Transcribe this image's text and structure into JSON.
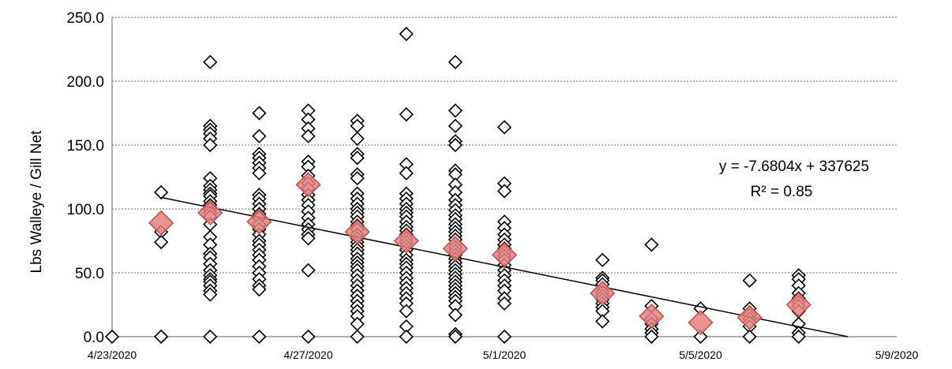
{
  "chart_data": {
    "type": "scatter",
    "title": "",
    "xlabel": "",
    "ylabel": "Lbs Walleye / Gill Net",
    "xlim": [
      "4/23/2020",
      "5/9/2020"
    ],
    "ylim": [
      0,
      250
    ],
    "x_ticks": [
      "4/23/2020",
      "4/27/2020",
      "5/1/2020",
      "5/5/2020",
      "5/9/2020"
    ],
    "y_ticks": [
      "0.0",
      "50.0",
      "100.0",
      "150.0",
      "200.0",
      "250.0"
    ],
    "grid": "horizontal dotted",
    "series": [
      {
        "style": "open-diamond",
        "color": "#000000",
        "points": [
          {
            "x": "4/23/2020",
            "y": [
              0
            ]
          },
          {
            "x": "4/24/2020",
            "y": [
              113,
              82,
              74,
              0
            ]
          },
          {
            "x": "4/25/2020",
            "y": [
              215,
              165,
              162,
              159,
              155,
              150,
              124,
              118,
              115,
              112,
              110,
              106,
              103,
              100,
              97,
              94,
              88,
              78,
              72,
              65,
              62,
              57,
              52,
              48,
              45,
              43,
              40,
              36,
              33,
              0
            ]
          },
          {
            "x": "4/26/2020",
            "y": [
              175,
              157,
              143,
              140,
              136,
              132,
              128,
              111,
              108,
              104,
              100,
              96,
              93,
              88,
              84,
              80,
              75,
              72,
              68,
              64,
              60,
              55,
              50,
              45,
              40,
              37,
              0
            ]
          },
          {
            "x": "4/27/2020",
            "y": [
              177,
              170,
              163,
              157,
              137,
              133,
              126,
              120,
              116,
              111,
              107,
              103,
              98,
              93,
              88,
              84,
              80,
              77,
              52,
              0
            ]
          },
          {
            "x": "4/28/2020",
            "y": [
              169,
              165,
              155,
              143,
              140,
              127,
              124,
              112,
              108,
              104,
              100,
              97,
              94,
              90,
              87,
              84,
              80,
              77,
              74,
              71,
              68,
              65,
              61,
              58,
              55,
              52,
              48,
              44,
              40,
              36,
              32,
              28,
              24,
              20,
              16,
              10,
              0
            ]
          },
          {
            "x": "4/29/2020",
            "y": [
              237,
              174,
              135,
              128,
              112,
              108,
              104,
              100,
              97,
              94,
              90,
              86,
              83,
              80,
              77,
              74,
              71,
              68,
              64,
              60,
              57,
              54,
              50,
              46,
              42,
              38,
              34,
              30,
              26,
              20,
              8,
              0
            ]
          },
          {
            "x": "4/30/2020",
            "y": [
              215,
              177,
              165,
              153,
              150,
              130,
              127,
              119,
              113,
              107,
              103,
              99,
              95,
              92,
              88,
              85,
              82,
              79,
              76,
              73,
              70,
              67,
              64,
              61,
              58,
              55,
              52,
              49,
              46,
              43,
              40,
              37,
              34,
              31,
              28,
              24,
              17,
              2,
              0
            ]
          },
          {
            "x": "5/1/2020",
            "y": [
              164,
              120,
              114,
              90,
              85,
              80,
              76,
              72,
              69,
              66,
              63,
              60,
              56,
              52,
              48,
              44,
              40,
              36,
              30,
              26,
              0
            ]
          },
          {
            "x": "5/3/2020",
            "y": [
              60,
              46,
              44,
              41,
              38,
              35,
              32,
              29,
              26,
              23,
              20,
              12
            ]
          },
          {
            "x": "5/4/2020",
            "y": [
              72,
              24,
              14,
              10,
              6,
              3,
              0
            ]
          },
          {
            "x": "5/5/2020",
            "y": [
              22,
              0
            ]
          },
          {
            "x": "5/6/2020",
            "y": [
              44,
              22,
              19,
              17,
              14,
              11,
              8,
              0
            ]
          },
          {
            "x": "5/7/2020",
            "y": [
              48,
              45,
              40,
              34,
              30,
              27,
              24,
              20,
              10,
              3,
              0
            ]
          }
        ]
      },
      {
        "style": "filled-diamond",
        "color": "#e58080",
        "points": [
          {
            "x": "4/24/2020",
            "y": 89
          },
          {
            "x": "4/25/2020",
            "y": 97
          },
          {
            "x": "4/26/2020",
            "y": 90
          },
          {
            "x": "4/27/2020",
            "y": 119
          },
          {
            "x": "4/28/2020",
            "y": 82
          },
          {
            "x": "4/29/2020",
            "y": 75
          },
          {
            "x": "4/30/2020",
            "y": 69
          },
          {
            "x": "5/1/2020",
            "y": 64
          },
          {
            "x": "5/3/2020",
            "y": 34
          },
          {
            "x": "5/4/2020",
            "y": 16
          },
          {
            "x": "5/5/2020",
            "y": 11
          },
          {
            "x": "5/6/2020",
            "y": 15
          },
          {
            "x": "5/7/2020",
            "y": 25
          }
        ]
      }
    ],
    "trendline": {
      "equation": "y = -7.6804x + 337625",
      "r_squared": "R² = 0.85",
      "from": {
        "x": "4/24/2020",
        "y": 109
      },
      "to": {
        "x": "5/8/2020",
        "y": 0
      }
    }
  }
}
